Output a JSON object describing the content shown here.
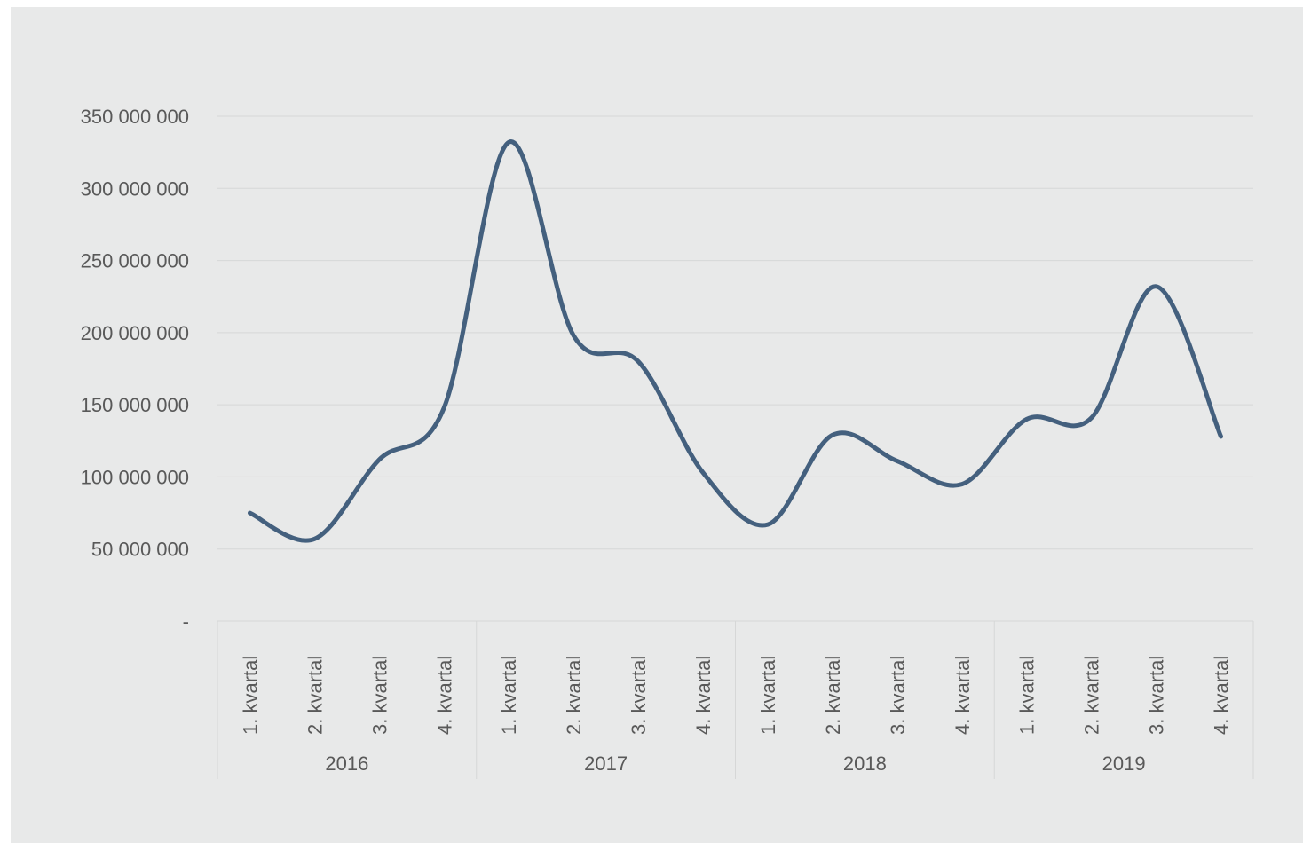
{
  "chart_data": {
    "type": "line",
    "title": "",
    "xlabel": "",
    "ylabel": "",
    "ylim": [
      0,
      350000000
    ],
    "yticks": [
      "-",
      "50 000 000",
      "100 000 000",
      "150 000 000",
      "200 000 000",
      "250 000 000",
      "300 000 000",
      "350 000 000"
    ],
    "ytick_values": [
      0,
      50000000,
      100000000,
      150000000,
      200000000,
      250000000,
      300000000,
      350000000
    ],
    "grid": true,
    "line_color": "#44607e",
    "groups": [
      {
        "year": "2016",
        "quarters": [
          "1. kvartal",
          "2. kvartal",
          "3. kvartal",
          "4. kvartal"
        ]
      },
      {
        "year": "2017",
        "quarters": [
          "1. kvartal",
          "2. kvartal",
          "3. kvartal",
          "4. kvartal"
        ]
      },
      {
        "year": "2018",
        "quarters": [
          "1. kvartal",
          "2. kvartal",
          "3. kvartal",
          "4. kvartal"
        ]
      },
      {
        "year": "2019",
        "quarters": [
          "1. kvartal",
          "2. kvartal",
          "3. kvartal",
          "4. kvartal"
        ]
      }
    ],
    "series": [
      {
        "values": [
          75000000,
          57000000,
          112000000,
          148000000,
          332000000,
          198000000,
          180000000,
          103000000,
          67000000,
          129000000,
          111000000,
          95000000,
          140000000,
          141000000,
          232000000,
          128000000
        ]
      }
    ]
  }
}
